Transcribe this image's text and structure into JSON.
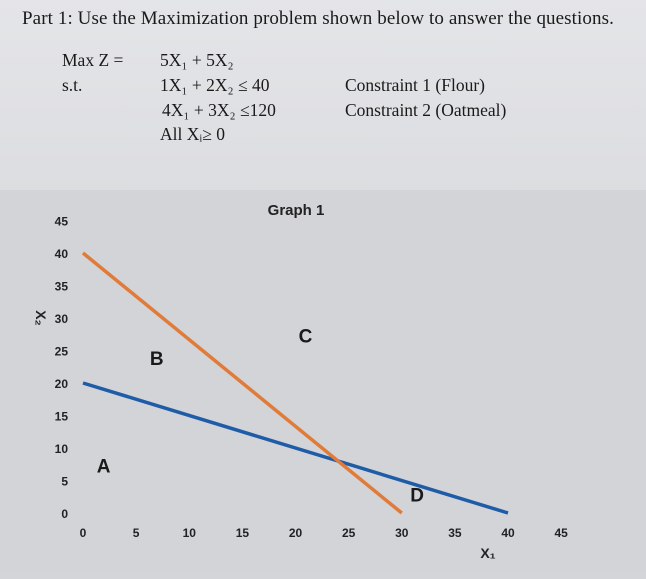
{
  "heading": "Part 1: Use the Maximization problem shown below to answer the questions.",
  "problem": {
    "objective_label": "Max Z =",
    "objective_expr": "5X₁ + 5X₂",
    "st_label": "s.t.",
    "constraints": [
      {
        "expr": "1X₁ + 2X₂ ≤ 40",
        "name": "Constraint 1 (Flour)"
      },
      {
        "expr": "4X₁ + 3X₂ ≤120",
        "name": "Constraint 2 (Oatmeal)"
      }
    ],
    "nonnegativity": "All Xᵢ≥ 0"
  },
  "chart_data": {
    "type": "line",
    "title": "Graph 1",
    "xlabel": "X₁",
    "ylabel": "X₂",
    "xlim": [
      0,
      45
    ],
    "ylim": [
      0,
      45
    ],
    "xticks": [
      "0",
      "5",
      "10",
      "15",
      "20",
      "25",
      "30",
      "35",
      "40",
      "45"
    ],
    "yticks": [
      "0",
      "5",
      "10",
      "15",
      "20",
      "25",
      "30",
      "35",
      "40",
      "45"
    ],
    "grid": false,
    "series": [
      {
        "x": [
          0,
          40
        ],
        "y": [
          20,
          0
        ],
        "color": "#1f5ca8"
      },
      {
        "x": [
          0,
          30
        ],
        "y": [
          40,
          0
        ],
        "color": "#e07b39"
      }
    ],
    "annotations": [
      {
        "text": "A",
        "x": 1,
        "y": 7.5
      },
      {
        "text": "B",
        "x": 6,
        "y": 24
      },
      {
        "text": "C",
        "x": 20,
        "y": 27.5
      },
      {
        "text": "D",
        "x": 30.5,
        "y": 3
      }
    ]
  }
}
